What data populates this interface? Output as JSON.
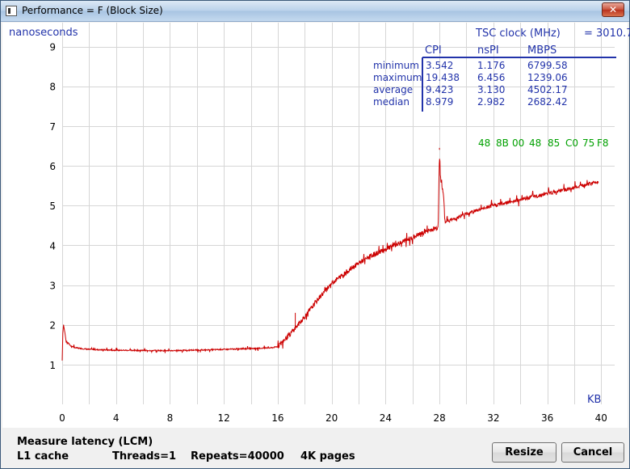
{
  "window": {
    "title": "Performance = F (Block Size)",
    "close_glyph": "✕"
  },
  "chart_data": {
    "type": "line",
    "ylabel": "nanoseconds",
    "xlabel": "KB",
    "xlim": [
      0,
      41
    ],
    "ylim": [
      0,
      9.6
    ],
    "xticks": [
      0,
      4,
      8,
      12,
      16,
      20,
      24,
      28,
      32,
      36,
      40
    ],
    "yticks": [
      1,
      2,
      3,
      4,
      5,
      6,
      7,
      8,
      9
    ],
    "grid": true,
    "series_color": "#cc0000",
    "knots": [
      [
        0.0,
        1.1
      ],
      [
        0.05,
        1.8
      ],
      [
        0.1,
        2.0
      ],
      [
        0.3,
        1.6
      ],
      [
        0.6,
        1.48
      ],
      [
        1.0,
        1.42
      ],
      [
        2.0,
        1.38
      ],
      [
        4.0,
        1.36
      ],
      [
        8.0,
        1.35
      ],
      [
        12.0,
        1.38
      ],
      [
        15.5,
        1.42
      ],
      [
        16.0,
        1.45
      ],
      [
        17.0,
        1.8
      ],
      [
        18.0,
        2.2
      ],
      [
        19.0,
        2.65
      ],
      [
        20.0,
        3.05
      ],
      [
        21.0,
        3.3
      ],
      [
        22.0,
        3.55
      ],
      [
        23.0,
        3.75
      ],
      [
        24.0,
        3.9
      ],
      [
        25.0,
        4.05
      ],
      [
        26.0,
        4.2
      ],
      [
        27.0,
        4.35
      ],
      [
        27.9,
        4.45
      ],
      [
        28.0,
        6.4
      ],
      [
        28.1,
        5.6
      ],
      [
        28.3,
        5.3
      ],
      [
        28.4,
        4.6
      ],
      [
        29.0,
        4.65
      ],
      [
        30.0,
        4.8
      ],
      [
        31.0,
        4.9
      ],
      [
        32.0,
        5.0
      ],
      [
        34.0,
        5.15
      ],
      [
        36.0,
        5.3
      ],
      [
        38.0,
        5.45
      ],
      [
        39.8,
        5.6
      ]
    ],
    "spikes": [
      [
        28.0,
        6.45
      ],
      [
        29.7,
        4.85
      ],
      [
        17.3,
        2.3
      ],
      [
        19.5,
        2.9
      ]
    ],
    "samples": 1600,
    "noise_seed": 7
  },
  "stats": {
    "tsc_label": "TSC clock (MHz)",
    "tsc_value": "= 3010.7",
    "headers": [
      "CPI",
      "nsPI",
      "MBPS"
    ],
    "rows": [
      {
        "label": "minimum",
        "values": [
          "3.542",
          "1.176",
          "6799.58"
        ]
      },
      {
        "label": "maximum",
        "values": [
          "19.438",
          "6.456",
          "1239.06"
        ]
      },
      {
        "label": "average",
        "values": [
          "9.423",
          "3.130",
          "4502.17"
        ]
      },
      {
        "label": "median",
        "values": [
          "8.979",
          "2.982",
          "2682.42"
        ]
      }
    ],
    "opcodes": [
      "48",
      "8B",
      "00",
      "48",
      "85",
      "C0",
      "75",
      "F8"
    ],
    "opcode_color": "#00a000",
    "text_color": "#2233aa"
  },
  "footer": {
    "method": "Measure latency (LCM)",
    "cache": "L1 cache",
    "threads": "Threads=1",
    "repeats": "Repeats=40000",
    "pages": "4K pages",
    "resize_label": "Resize",
    "cancel_label": "Cancel"
  }
}
